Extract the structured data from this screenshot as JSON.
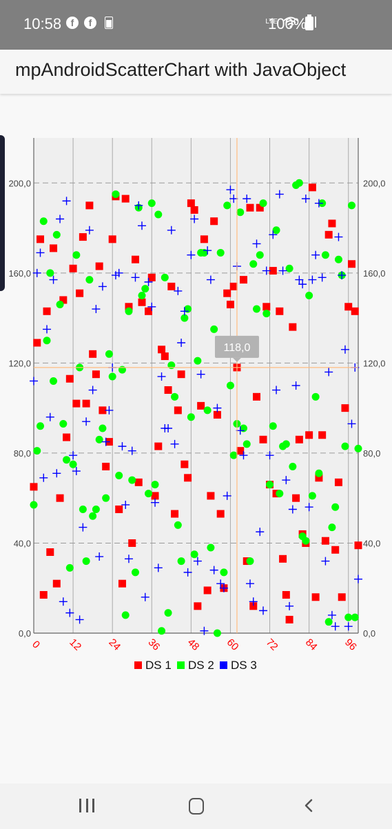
{
  "status_bar": {
    "time": "10:58",
    "battery_text": "100%",
    "network_label": "LTE"
  },
  "app_bar": {
    "title": "mpAndroidScatterChart with JavaObject"
  },
  "highlight": {
    "x": 62,
    "y": 118,
    "label": "118,0",
    "color": "#ffbb80"
  },
  "chart_data": {
    "type": "scatter",
    "xlim": [
      0,
      99
    ],
    "ylim": [
      0,
      220
    ],
    "x_ticks": [
      "0",
      "12",
      "24",
      "36",
      "48",
      "60",
      "72",
      "84",
      "96"
    ],
    "y_ticks_left": [
      "0,0",
      "40,0",
      "80,0",
      "120,0",
      "160,0",
      "200,0"
    ],
    "y_ticks_right": [
      "0,0",
      "40,0",
      "80,0",
      "120,0",
      "160,0",
      "200,0"
    ],
    "grid": true,
    "legend_position": "bottom-center",
    "series": [
      {
        "name": "DS 1",
        "color": "#ff0000",
        "shape": "square",
        "points": [
          [
            0,
            65
          ],
          [
            1,
            129
          ],
          [
            2,
            175
          ],
          [
            3,
            17
          ],
          [
            4,
            143
          ],
          [
            5,
            36
          ],
          [
            6,
            171
          ],
          [
            7,
            22
          ],
          [
            8,
            60
          ],
          [
            9,
            148
          ],
          [
            10,
            87
          ],
          [
            11,
            113
          ],
          [
            12,
            162
          ],
          [
            13,
            102
          ],
          [
            14,
            151
          ],
          [
            15,
            176
          ],
          [
            16,
            102
          ],
          [
            17,
            190
          ],
          [
            18,
            124
          ],
          [
            19,
            115
          ],
          [
            20,
            163
          ],
          [
            21,
            99
          ],
          [
            22,
            74
          ],
          [
            23,
            85
          ],
          [
            24,
            175
          ],
          [
            25,
            194
          ],
          [
            26,
            55
          ],
          [
            27,
            22
          ],
          [
            28,
            193
          ],
          [
            29,
            145
          ],
          [
            30,
            40
          ],
          [
            31,
            166
          ],
          [
            32,
            67
          ],
          [
            33,
            147
          ],
          [
            35,
            143
          ],
          [
            36,
            158
          ],
          [
            37,
            61
          ],
          [
            38,
            83
          ],
          [
            39,
            126
          ],
          [
            40,
            123
          ],
          [
            41,
            108
          ],
          [
            42,
            154
          ],
          [
            43,
            53
          ],
          [
            44,
            99
          ],
          [
            45,
            115
          ],
          [
            46,
            75
          ],
          [
            47,
            69
          ],
          [
            48,
            191
          ],
          [
            49,
            188
          ],
          [
            50,
            12
          ],
          [
            51,
            101
          ],
          [
            52,
            175
          ],
          [
            53,
            19
          ],
          [
            54,
            61
          ],
          [
            55,
            183
          ],
          [
            56,
            97
          ],
          [
            57,
            53
          ],
          [
            58,
            20
          ],
          [
            59,
            151
          ],
          [
            60,
            146
          ],
          [
            61,
            154
          ],
          [
            62,
            118
          ],
          [
            63,
            81
          ],
          [
            64,
            157
          ],
          [
            65,
            32
          ],
          [
            66,
            189
          ],
          [
            67,
            12
          ],
          [
            68,
            105
          ],
          [
            69,
            189
          ],
          [
            70,
            86
          ],
          [
            71,
            145
          ],
          [
            72,
            66
          ],
          [
            73,
            161
          ],
          [
            74,
            62
          ],
          [
            75,
            143
          ],
          [
            76,
            33
          ],
          [
            77,
            17
          ],
          [
            78,
            6
          ],
          [
            79,
            136
          ],
          [
            80,
            60
          ],
          [
            81,
            86
          ],
          [
            82,
            44
          ],
          [
            83,
            40
          ],
          [
            84,
            88
          ],
          [
            85,
            198
          ],
          [
            86,
            16
          ],
          [
            87,
            69
          ],
          [
            88,
            88
          ],
          [
            89,
            41
          ],
          [
            90,
            177
          ],
          [
            91,
            182
          ],
          [
            92,
            37
          ],
          [
            93,
            67
          ],
          [
            94,
            16
          ],
          [
            95,
            100
          ],
          [
            96,
            145
          ],
          [
            97,
            164
          ],
          [
            98,
            143
          ],
          [
            99,
            39
          ]
        ]
      },
      {
        "name": "DS 2",
        "color": "#00ff00",
        "shape": "circle",
        "points": [
          [
            0,
            57
          ],
          [
            1,
            81
          ],
          [
            2,
            92
          ],
          [
            3,
            183
          ],
          [
            4,
            130
          ],
          [
            5,
            160
          ],
          [
            6,
            112
          ],
          [
            7,
            177
          ],
          [
            8,
            146
          ],
          [
            9,
            93
          ],
          [
            10,
            77
          ],
          [
            11,
            29
          ],
          [
            12,
            75
          ],
          [
            13,
            168
          ],
          [
            14,
            118
          ],
          [
            15,
            55
          ],
          [
            16,
            32
          ],
          [
            17,
            157
          ],
          [
            18,
            52
          ],
          [
            19,
            55
          ],
          [
            20,
            86
          ],
          [
            21,
            91
          ],
          [
            22,
            60
          ],
          [
            23,
            124
          ],
          [
            24,
            114
          ],
          [
            25,
            195
          ],
          [
            26,
            70
          ],
          [
            27,
            117
          ],
          [
            28,
            8
          ],
          [
            29,
            143
          ],
          [
            30,
            68
          ],
          [
            31,
            27
          ],
          [
            32,
            189
          ],
          [
            33,
            150
          ],
          [
            34,
            153
          ],
          [
            35,
            62
          ],
          [
            36,
            191
          ],
          [
            37,
            66
          ],
          [
            38,
            186
          ],
          [
            39,
            1
          ],
          [
            40,
            158
          ],
          [
            41,
            9
          ],
          [
            42,
            119
          ],
          [
            43,
            105
          ],
          [
            44,
            48
          ],
          [
            45,
            32
          ],
          [
            46,
            140
          ],
          [
            47,
            144
          ],
          [
            48,
            96
          ],
          [
            49,
            35
          ],
          [
            50,
            121
          ],
          [
            51,
            169
          ],
          [
            52,
            169
          ],
          [
            53,
            99
          ],
          [
            54,
            38
          ],
          [
            55,
            135
          ],
          [
            56,
            0
          ],
          [
            57,
            169
          ],
          [
            58,
            27
          ],
          [
            59,
            190
          ],
          [
            60,
            110
          ],
          [
            61,
            79
          ],
          [
            62,
            93
          ],
          [
            63,
            187
          ],
          [
            64,
            91
          ],
          [
            65,
            84
          ],
          [
            66,
            32
          ],
          [
            67,
            164
          ],
          [
            68,
            144
          ],
          [
            69,
            168
          ],
          [
            70,
            191
          ],
          [
            71,
            142
          ],
          [
            72,
            66
          ],
          [
            73,
            92
          ],
          [
            74,
            179
          ],
          [
            75,
            62
          ],
          [
            76,
            83
          ],
          [
            77,
            84
          ],
          [
            78,
            162
          ],
          [
            79,
            74
          ],
          [
            80,
            199
          ],
          [
            81,
            200
          ],
          [
            82,
            43
          ],
          [
            83,
            41
          ],
          [
            84,
            150
          ],
          [
            85,
            61
          ],
          [
            86,
            105
          ],
          [
            87,
            71
          ],
          [
            88,
            191
          ],
          [
            89,
            168
          ],
          [
            90,
            5
          ],
          [
            91,
            47
          ],
          [
            92,
            56
          ],
          [
            93,
            166
          ],
          [
            94,
            159
          ],
          [
            95,
            83
          ],
          [
            96,
            7
          ],
          [
            97,
            190
          ],
          [
            98,
            7
          ],
          [
            99,
            82
          ]
        ]
      },
      {
        "name": "DS 3",
        "color": "#0000ff",
        "shape": "plus",
        "points": [
          [
            0,
            112
          ],
          [
            1,
            160
          ],
          [
            2,
            169
          ],
          [
            3,
            69
          ],
          [
            4,
            135
          ],
          [
            5,
            96
          ],
          [
            6,
            157
          ],
          [
            7,
            71
          ],
          [
            8,
            184
          ],
          [
            9,
            14
          ],
          [
            10,
            192
          ],
          [
            11,
            9
          ],
          [
            12,
            79
          ],
          [
            13,
            72
          ],
          [
            14,
            6
          ],
          [
            15,
            47
          ],
          [
            16,
            94
          ],
          [
            17,
            179
          ],
          [
            18,
            108
          ],
          [
            19,
            144
          ],
          [
            20,
            34
          ],
          [
            21,
            154
          ],
          [
            22,
            85
          ],
          [
            23,
            99
          ],
          [
            24,
            118
          ],
          [
            25,
            159
          ],
          [
            26,
            160
          ],
          [
            27,
            83
          ],
          [
            28,
            57
          ],
          [
            29,
            33
          ],
          [
            30,
            81
          ],
          [
            31,
            158
          ],
          [
            32,
            190
          ],
          [
            33,
            181
          ],
          [
            34,
            16
          ],
          [
            35,
            156
          ],
          [
            36,
            145
          ],
          [
            37,
            58
          ],
          [
            38,
            29
          ],
          [
            39,
            114
          ],
          [
            40,
            91
          ],
          [
            41,
            91
          ],
          [
            42,
            179
          ],
          [
            43,
            84
          ],
          [
            44,
            152
          ],
          [
            45,
            129
          ],
          [
            46,
            143
          ],
          [
            47,
            27
          ],
          [
            48,
            168
          ],
          [
            49,
            184
          ],
          [
            50,
            32
          ],
          [
            51,
            115
          ],
          [
            52,
            1
          ],
          [
            53,
            170
          ],
          [
            54,
            157
          ],
          [
            55,
            28
          ],
          [
            56,
            100
          ],
          [
            57,
            22
          ],
          [
            58,
            20
          ],
          [
            59,
            61
          ],
          [
            60,
            197
          ],
          [
            61,
            193
          ],
          [
            62,
            163
          ],
          [
            63,
            90
          ],
          [
            64,
            79
          ],
          [
            65,
            193
          ],
          [
            66,
            22
          ],
          [
            67,
            14
          ],
          [
            68,
            173
          ],
          [
            69,
            45
          ],
          [
            70,
            10
          ],
          [
            71,
            161
          ],
          [
            72,
            79
          ],
          [
            73,
            177
          ],
          [
            74,
            108
          ],
          [
            75,
            195
          ],
          [
            76,
            161
          ],
          [
            77,
            68
          ],
          [
            78,
            12
          ],
          [
            79,
            55
          ],
          [
            80,
            110
          ],
          [
            81,
            157
          ],
          [
            82,
            155
          ],
          [
            83,
            193
          ],
          [
            84,
            56
          ],
          [
            85,
            157
          ],
          [
            86,
            168
          ],
          [
            87,
            191
          ],
          [
            88,
            158
          ],
          [
            89,
            32
          ],
          [
            90,
            116
          ],
          [
            91,
            8
          ],
          [
            92,
            3
          ],
          [
            93,
            176
          ],
          [
            94,
            159
          ],
          [
            95,
            126
          ],
          [
            96,
            3
          ],
          [
            97,
            93
          ],
          [
            98,
            118
          ],
          [
            99,
            24
          ]
        ]
      }
    ]
  },
  "nav_bar": {
    "recent_icon": "recent-apps-icon",
    "home_icon": "home-icon",
    "back_icon": "back-icon"
  }
}
